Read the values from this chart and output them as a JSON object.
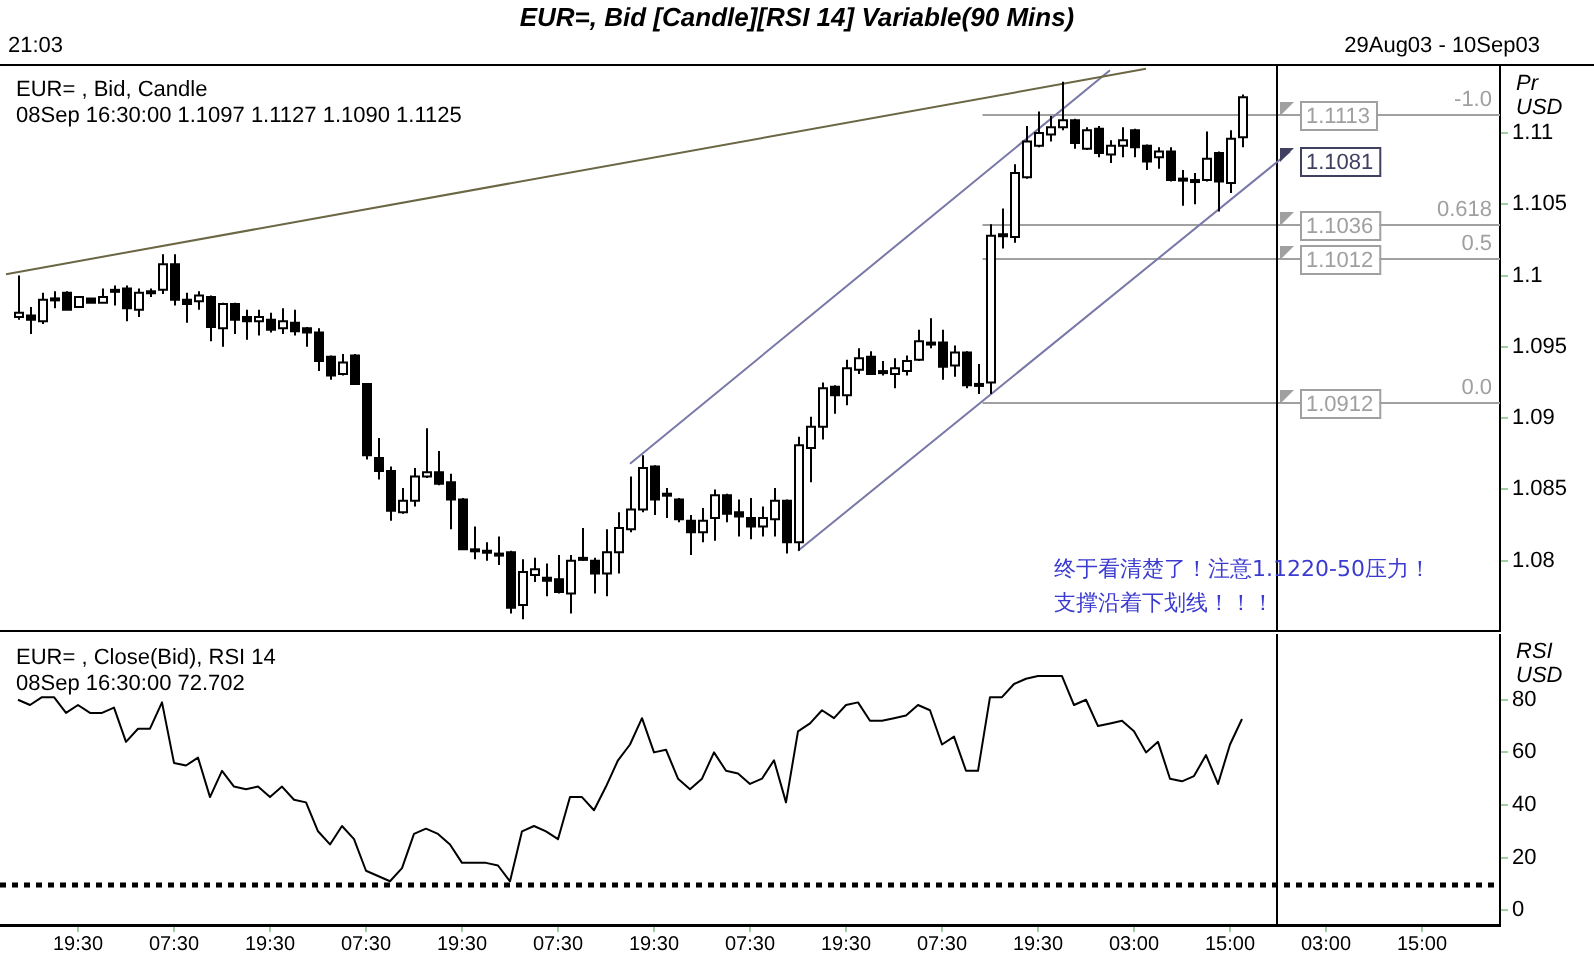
{
  "chart_data": [
    {
      "type": "candlestick",
      "title": "EUR=, Bid [Candle][RSI 14] Variable(90 Mins)",
      "subtitle": "EUR= , Bid, Candle",
      "ylabel": "Pr USD",
      "annotations": [
        "21:03",
        "29Aug03 - 10Sep03",
        "08Sep 16:30:00 1.1097 1.1127 1.1090 1.1125",
        "终于看清楚了！注意1.1220-50压力！",
        "支撑沿着下划线！！！",
        {
          "text": "1.1081",
          "y": 1.1081
        },
        {
          "text": "-1.0",
          "y": 1.1113
        },
        {
          "text": "0.618",
          "y": 1.1036
        },
        {
          "text": "0.5",
          "y": 1.1012
        },
        {
          "text": "0.0",
          "y": 1.0912
        }
      ],
      "categories": [
        null,
        null,
        null,
        null,
        null,
        null,
        null,
        null,
        null,
        null,
        null,
        null,
        null,
        null,
        null,
        null,
        null,
        null,
        null,
        null,
        null,
        null,
        null,
        null,
        null,
        null,
        null,
        null,
        null,
        null,
        null,
        null,
        null,
        null,
        null,
        null,
        null,
        null,
        null,
        null,
        null,
        null,
        null,
        null,
        null,
        null,
        null,
        null,
        null,
        null,
        null,
        null,
        null,
        null,
        null,
        null,
        null,
        null,
        null,
        null,
        null,
        null,
        null,
        null,
        null,
        null,
        null,
        null,
        null,
        null,
        null,
        null,
        null,
        null,
        null,
        null,
        null,
        null,
        null,
        null,
        null,
        null,
        null,
        null,
        null,
        null,
        null,
        null,
        null,
        null,
        null,
        null,
        null,
        null,
        null,
        null,
        null,
        null,
        null,
        null,
        null,
        null,
        null,
        null,
        null,
        null,
        null,
        null,
        null,
        null,
        null,
        null,
        null,
        null,
        null,
        null,
        null,
        null,
        null,
        null,
        null,
        null,
        null,
        null,
        null
      ],
      "ohlc": [
        null,
        [
          1.0971,
          1.1,
          1.0969,
          1.0974
        ],
        [
          1.0972,
          1.0978,
          1.0959,
          1.0969
        ],
        [
          1.0968,
          1.0988,
          1.0966,
          1.0983
        ],
        [
          1.0983,
          1.0989,
          1.0977,
          1.0984
        ],
        [
          1.0988,
          1.0989,
          1.0976,
          1.0976
        ],
        [
          1.0978,
          1.0985,
          1.0978,
          1.0985
        ],
        [
          1.0984,
          1.0984,
          1.0981,
          1.0981
        ],
        [
          1.0981,
          1.0991,
          1.0981,
          1.0985
        ],
        [
          1.0989,
          1.0993,
          1.0979,
          1.099
        ],
        [
          1.0991,
          1.0993,
          1.0968,
          1.0977
        ],
        [
          1.0976,
          1.0991,
          1.0971,
          1.0988
        ],
        [
          1.0988,
          1.0991,
          1.0985,
          1.0989
        ],
        [
          1.099,
          1.1015,
          1.0987,
          1.1008
        ],
        [
          1.1008,
          1.1015,
          1.0979,
          1.0983
        ],
        [
          1.0983,
          1.0988,
          1.0967,
          1.098
        ],
        [
          1.0982,
          1.0989,
          1.0976,
          1.0986
        ],
        [
          1.0985,
          1.0986,
          1.0954,
          1.0964
        ],
        [
          1.0963,
          1.0981,
          1.095,
          1.098
        ],
        [
          1.098,
          1.0981,
          1.0959,
          1.0969
        ],
        [
          1.0971,
          1.0976,
          1.0955,
          1.0968
        ],
        [
          1.0968,
          1.0976,
          1.0958,
          1.0971
        ],
        [
          1.0969,
          1.0974,
          1.096,
          1.0962
        ],
        [
          1.0963,
          1.0977,
          1.0959,
          1.0968
        ],
        [
          1.0967,
          1.0976,
          1.0958,
          1.0961
        ],
        [
          1.0963,
          1.0964,
          1.095,
          1.096
        ],
        [
          1.096,
          1.0963,
          1.0933,
          1.094
        ],
        [
          1.0943,
          1.0944,
          1.0927,
          1.093
        ],
        [
          1.0931,
          1.0945,
          1.093,
          1.0939
        ],
        [
          1.0944,
          1.0945,
          1.0924,
          1.0924
        ],
        [
          1.0924,
          1.0924,
          1.0871,
          1.0874
        ],
        [
          1.0872,
          1.0886,
          1.0857,
          1.0863
        ],
        [
          1.0863,
          1.0866,
          1.0828,
          1.0835
        ],
        [
          1.0834,
          1.0851,
          1.0833,
          1.0842
        ],
        [
          1.0842,
          1.0865,
          1.0838,
          1.0859
        ],
        [
          1.0859,
          1.0893,
          1.0858,
          1.0862
        ],
        [
          1.0862,
          1.0877,
          1.0853,
          1.0854
        ],
        [
          1.0855,
          1.0861,
          1.0822,
          1.0843
        ],
        [
          1.0843,
          1.0844,
          1.0808,
          1.0808
        ],
        [
          1.0808,
          1.0824,
          1.0801,
          1.0807
        ],
        [
          1.0806,
          1.0813,
          1.08,
          1.0807
        ],
        [
          1.0805,
          1.0817,
          1.0797,
          1.0804
        ],
        [
          1.0806,
          1.0807,
          1.0763,
          1.0767
        ],
        [
          1.0769,
          1.0801,
          1.0759,
          1.0792
        ],
        [
          1.079,
          1.0802,
          1.0785,
          1.0794
        ],
        [
          1.0788,
          1.0798,
          1.0775,
          1.0786
        ],
        [
          1.0787,
          1.0804,
          1.0777,
          1.0778
        ],
        [
          1.0777,
          1.0804,
          1.0763,
          1.08
        ],
        [
          1.0801,
          1.0823,
          1.08,
          1.0802
        ],
        [
          1.08,
          1.0802,
          1.0777,
          1.0791
        ],
        [
          1.0791,
          1.0822,
          1.0775,
          1.0806
        ],
        [
          1.0806,
          1.0834,
          1.0791,
          1.0823
        ],
        [
          1.0822,
          1.0859,
          1.082,
          1.0836
        ],
        [
          1.0836,
          1.0874,
          1.0834,
          1.0865
        ],
        [
          1.0866,
          1.0867,
          1.0832,
          1.0843
        ],
        [
          1.0847,
          1.0851,
          1.083,
          1.0846
        ],
        [
          1.0843,
          1.0844,
          1.0827,
          1.0829
        ],
        [
          1.0828,
          1.0832,
          1.0804,
          1.082
        ],
        [
          1.082,
          1.0837,
          1.0813,
          1.0828
        ],
        [
          1.083,
          1.085,
          1.0814,
          1.0846
        ],
        [
          1.0846,
          1.0847,
          1.0827,
          1.0833
        ],
        [
          1.0834,
          1.0843,
          1.0817,
          1.0831
        ],
        [
          1.083,
          1.0844,
          1.0815,
          1.0824
        ],
        [
          1.0824,
          1.0838,
          1.0817,
          1.083
        ],
        [
          1.0829,
          1.0851,
          1.0817,
          1.0842
        ],
        [
          1.0842,
          1.0843,
          1.0805,
          1.0813
        ],
        [
          1.0813,
          1.0887,
          1.0807,
          1.0881
        ],
        [
          1.0879,
          1.0901,
          1.0855,
          1.0894
        ],
        [
          1.0894,
          1.0925,
          1.0885,
          1.0921
        ],
        [
          1.0922,
          1.0923,
          1.0903,
          1.0916
        ],
        [
          1.0916,
          1.0941,
          1.0909,
          1.0935
        ],
        [
          1.0934,
          1.0949,
          1.0931,
          1.0942
        ],
        [
          1.0943,
          1.0947,
          1.0931,
          1.0931
        ],
        [
          1.0932,
          1.094,
          1.093,
          1.0933
        ],
        [
          1.0931,
          1.0942,
          1.0921,
          1.0935
        ],
        [
          1.0933,
          1.0944,
          1.093,
          1.094
        ],
        [
          1.0941,
          1.0962,
          1.094,
          1.0954
        ],
        [
          1.0953,
          1.097,
          1.0949,
          1.0952
        ],
        [
          1.0953,
          1.0962,
          1.0927,
          1.0936
        ],
        [
          1.0937,
          1.0951,
          1.0929,
          1.0946
        ],
        [
          1.0946,
          1.0947,
          1.0921,
          1.0923
        ],
        [
          1.0924,
          1.0938,
          1.0917,
          1.0923
        ],
        [
          1.0925,
          1.1036,
          1.0917,
          1.1028
        ],
        [
          1.1028,
          1.1047,
          1.1019,
          1.1029
        ],
        [
          1.1027,
          1.1078,
          1.1023,
          1.1072
        ],
        [
          1.1069,
          1.1105,
          1.1068,
          1.1094
        ],
        [
          1.1091,
          1.1115,
          1.109,
          1.11
        ],
        [
          1.1099,
          1.1112,
          1.1094,
          1.1104
        ],
        [
          1.1104,
          1.1136,
          1.1102,
          1.1109
        ],
        [
          1.1109,
          1.111,
          1.1089,
          1.1093
        ],
        [
          1.1089,
          1.1104,
          1.1088,
          1.1102
        ],
        [
          1.1103,
          1.1105,
          1.1083,
          1.1086
        ],
        [
          1.1085,
          1.1095,
          1.1079,
          1.1091
        ],
        [
          1.1091,
          1.1104,
          1.1083,
          1.1095
        ],
        [
          1.1102,
          1.1103,
          1.1083,
          1.109
        ],
        [
          1.1091,
          1.1092,
          1.1074,
          1.108
        ],
        [
          1.1083,
          1.109,
          1.1075,
          1.1087
        ],
        [
          1.1087,
          1.109,
          1.1066,
          1.1067
        ],
        [
          1.1068,
          1.1074,
          1.1049,
          1.1067
        ],
        [
          1.1067,
          1.1072,
          1.105,
          1.1066
        ],
        [
          1.1067,
          1.1101,
          1.1066,
          1.1082
        ],
        [
          1.1086,
          1.1087,
          1.1045,
          1.1066
        ],
        [
          1.1065,
          1.1102,
          1.1058,
          1.1096
        ],
        [
          1.1097,
          1.1127,
          1.109,
          1.1125
        ],
        null,
        null,
        null,
        null,
        null,
        null,
        null,
        null,
        null,
        null,
        null,
        null,
        null,
        null,
        null,
        null,
        null,
        null,
        null,
        null,
        null
      ],
      "series": [
        {
          "type": "line",
          "color": "#6b6644",
          "values": [
            1.1001,
            null,
            null,
            null,
            null,
            null,
            null,
            null,
            null,
            null,
            null,
            null,
            null,
            null,
            null,
            null,
            null,
            null,
            null,
            null,
            null,
            null,
            null,
            null,
            null,
            null,
            null,
            null,
            null,
            null,
            null,
            null,
            null,
            null,
            null,
            null,
            null,
            null,
            null,
            null,
            null,
            null,
            null,
            null,
            null,
            null,
            null,
            null,
            null,
            null,
            null,
            null,
            null,
            null,
            null,
            null,
            null,
            null,
            null,
            null,
            null,
            null,
            null,
            null,
            null,
            null,
            null,
            null,
            null,
            null,
            null,
            null,
            null,
            null,
            null,
            null,
            null,
            null,
            null,
            null,
            null,
            null,
            null,
            null,
            null,
            null,
            null,
            null,
            null,
            null,
            null,
            null,
            null,
            null,
            null,
            1.1145,
            null,
            null,
            null,
            null,
            null,
            null,
            null,
            null,
            null,
            null,
            null,
            null,
            null,
            null,
            null,
            null,
            null,
            null,
            null,
            null,
            null,
            null,
            null,
            null,
            null,
            null,
            null,
            null,
            null
          ]
        },
        {
          "type": "line",
          "color": "#7878a8",
          "values": [
            null,
            null,
            null,
            null,
            null,
            null,
            null,
            null,
            null,
            null,
            null,
            null,
            null,
            null,
            null,
            null,
            null,
            null,
            null,
            null,
            null,
            null,
            null,
            null,
            null,
            null,
            null,
            null,
            null,
            null,
            null,
            null,
            null,
            null,
            null,
            null,
            null,
            null,
            null,
            null,
            null,
            null,
            null,
            null,
            null,
            null,
            null,
            null,
            null,
            null,
            null,
            null,
            1.0868,
            null,
            null,
            null,
            null,
            null,
            null,
            null,
            null,
            null,
            null,
            null,
            null,
            null,
            null,
            null,
            null,
            null,
            null,
            null,
            null,
            null,
            null,
            null,
            null,
            null,
            null,
            null,
            null,
            null,
            null,
            null,
            null,
            null,
            null,
            null,
            null,
            null,
            null,
            null,
            1.1144,
            null,
            null,
            null,
            null,
            null,
            null,
            null,
            null,
            null,
            null,
            null,
            null,
            null,
            null,
            null,
            null,
            null,
            null,
            null,
            null,
            null,
            null,
            null,
            null,
            null,
            null,
            null,
            null,
            null,
            null,
            null,
            null
          ]
        },
        {
          "type": "line",
          "color": "#7878a8",
          "values": [
            null,
            null,
            null,
            null,
            null,
            null,
            null,
            null,
            null,
            null,
            null,
            null,
            null,
            null,
            null,
            null,
            null,
            null,
            null,
            null,
            null,
            null,
            null,
            null,
            null,
            null,
            null,
            null,
            null,
            null,
            null,
            null,
            null,
            null,
            null,
            null,
            null,
            null,
            null,
            null,
            null,
            null,
            null,
            null,
            null,
            null,
            null,
            null,
            null,
            null,
            null,
            null,
            null,
            null,
            null,
            null,
            null,
            null,
            null,
            null,
            null,
            null,
            null,
            null,
            null,
            null,
            1.0807,
            null,
            null,
            null,
            null,
            null,
            null,
            null,
            null,
            null,
            null,
            null,
            null,
            null,
            null,
            null,
            null,
            null,
            null,
            null,
            null,
            null,
            null,
            null,
            null,
            null,
            null,
            null,
            null,
            null,
            null,
            null,
            null,
            null,
            null,
            null,
            null,
            null,
            null,
            null,
            null,
            1.1087,
            null,
            null,
            null,
            null,
            null,
            null,
            null,
            null,
            null,
            null,
            null,
            null,
            null,
            null,
            null,
            null,
            null
          ]
        }
      ],
      "ref_lines": [
        {
          "axis": "y",
          "value": 1.1113,
          "label": "1.1113",
          "color": "#a0a0a0"
        },
        {
          "axis": "y",
          "value": 1.1036,
          "label": "1.1036",
          "color": "#a0a0a0"
        },
        {
          "axis": "y",
          "value": 1.1012,
          "label": "1.1012",
          "color": "#a0a0a0"
        },
        {
          "axis": "y",
          "value": 1.0912,
          "label": "1.0912",
          "color": "#a0a0a0"
        }
      ],
      "ylim": [
        1.075,
        1.1147
      ],
      "yticks": [
        1.08,
        1.085,
        1.09,
        1.095,
        1.1,
        1.105,
        1.11
      ],
      "tick_labels": "y"
    },
    {
      "type": "line",
      "subtitle": "EUR= , Close(Bid), RSI 14",
      "ylabel": "RSI USD",
      "annotations": [
        "08Sep 16:30:00 72.702"
      ],
      "categories": [
        null,
        null,
        null,
        null,
        null,
        null,
        "19:30",
        null,
        null,
        null,
        null,
        null,
        null,
        null,
        "07:30",
        null,
        null,
        null,
        null,
        null,
        null,
        null,
        "19:30",
        null,
        null,
        null,
        null,
        null,
        null,
        null,
        "07:30",
        null,
        null,
        null,
        null,
        null,
        null,
        null,
        "19:30",
        null,
        null,
        null,
        null,
        null,
        null,
        null,
        "07:30",
        null,
        null,
        null,
        null,
        null,
        null,
        null,
        "19:30",
        null,
        null,
        null,
        null,
        null,
        null,
        null,
        "07:30",
        null,
        null,
        null,
        null,
        null,
        null,
        null,
        "19:30",
        null,
        null,
        null,
        null,
        null,
        null,
        null,
        "07:30",
        null,
        null,
        null,
        null,
        null,
        null,
        null,
        "19:30",
        null,
        null,
        null,
        null,
        null,
        null,
        null,
        "03:00",
        null,
        null,
        null,
        null,
        null,
        null,
        null,
        "15:00",
        null,
        null,
        null,
        null,
        null,
        null,
        null,
        "03:00",
        null,
        null,
        null,
        null,
        null,
        null,
        null,
        "15:00",
        null,
        null,
        null,
        null,
        null,
        null
      ],
      "series": [
        {
          "color": "#000000",
          "values": [
            null,
            80,
            78,
            81,
            81,
            75,
            78,
            75,
            75,
            77,
            64,
            69,
            69,
            79,
            56,
            55,
            58,
            43,
            53,
            47,
            46,
            47,
            43,
            47,
            42,
            41,
            30,
            25,
            32,
            27,
            15,
            13,
            11,
            16,
            29,
            31,
            29,
            25,
            18,
            18,
            18,
            17,
            11,
            30,
            32,
            30,
            27,
            43,
            43,
            38,
            47,
            57,
            63,
            73,
            60,
            61,
            50,
            46,
            50,
            60,
            53,
            52,
            48,
            50,
            57,
            41,
            68,
            71,
            76,
            73,
            78,
            79,
            72,
            72,
            73,
            74,
            78,
            76,
            63,
            66,
            53,
            53,
            81,
            81,
            86,
            88,
            89,
            89,
            89,
            78,
            80,
            70,
            71,
            72,
            68,
            60,
            64,
            50,
            49,
            51,
            59,
            48,
            63,
            72.7,
            null,
            null,
            null,
            null,
            null,
            null,
            null,
            null,
            null,
            null,
            null,
            null,
            null,
            null,
            null,
            null,
            null,
            null,
            null,
            null,
            null
          ]
        }
      ],
      "ref_lines": [
        {
          "axis": "y",
          "value": 10,
          "color": "#000000",
          "line_style": "dotted"
        }
      ],
      "ylim": [
        -6,
        105
      ],
      "yticks": [
        0,
        20,
        40,
        60,
        80
      ]
    }
  ]
}
